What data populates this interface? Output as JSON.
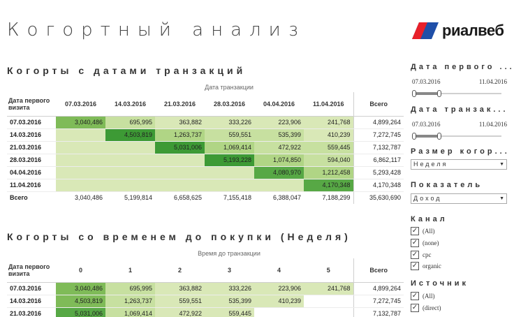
{
  "header": {
    "title": "Когортный анализ",
    "logo_text": "риалвеб"
  },
  "section1": {
    "title": "Когорты с датами транзакций",
    "axis_caption": "Дата транзакции",
    "row_header": "Дата первого визита",
    "columns": [
      "07.03.2016",
      "14.03.2016",
      "21.03.2016",
      "28.03.2016",
      "04.04.2016",
      "11.04.2016"
    ],
    "total_label": "Всего",
    "rows": [
      {
        "label": "07.03.2016",
        "cells": [
          "3,040,486",
          "695,995",
          "363,882",
          "333,226",
          "223,906",
          "241,768"
        ],
        "total": "4,899,264"
      },
      {
        "label": "14.03.2016",
        "cells": [
          "",
          "4,503,819",
          "1,263,737",
          "559,551",
          "535,399",
          "410,239"
        ],
        "total": "7,272,745"
      },
      {
        "label": "21.03.2016",
        "cells": [
          "",
          "",
          "5,031,006",
          "1,069,414",
          "472,922",
          "559,445"
        ],
        "total": "7,132,787"
      },
      {
        "label": "28.03.2016",
        "cells": [
          "",
          "",
          "",
          "5,193,228",
          "1,074,850",
          "594,040"
        ],
        "total": "6,862,117"
      },
      {
        "label": "04.04.2016",
        "cells": [
          "",
          "",
          "",
          "",
          "4,080,970",
          "1,212,458"
        ],
        "total": "5,293,428"
      },
      {
        "label": "11.04.2016",
        "cells": [
          "",
          "",
          "",
          "",
          "",
          "4,170,348"
        ],
        "total": "4,170,348"
      }
    ],
    "totals": {
      "label": "Всего",
      "cells": [
        "3,040,486",
        "5,199,814",
        "6,658,625",
        "7,155,418",
        "6,388,047",
        "7,188,299"
      ],
      "total": "35,630,690"
    }
  },
  "section2": {
    "title": "Когорты со временем до покупки (Неделя)",
    "axis_caption": "Время до транзакции",
    "row_header": "Дата первого визита",
    "columns": [
      "0",
      "1",
      "2",
      "3",
      "4",
      "5"
    ],
    "total_label": "Всего",
    "rows": [
      {
        "label": "07.03.2016",
        "cells": [
          "3,040,486",
          "695,995",
          "363,882",
          "333,226",
          "223,906",
          "241,768"
        ],
        "total": "4,899,264"
      },
      {
        "label": "14.03.2016",
        "cells": [
          "4,503,819",
          "1,263,737",
          "559,551",
          "535,399",
          "410,239",
          ""
        ],
        "total": "7,272,745"
      },
      {
        "label": "21.03.2016",
        "cells": [
          "5,031,006",
          "1,069,414",
          "472,922",
          "559,445",
          "",
          ""
        ],
        "total": "7,132,787"
      }
    ]
  },
  "filters": {
    "first_visit_date": {
      "title": "Дата первого ...",
      "from": "07.03.2016",
      "to": "11.04.2016"
    },
    "transaction_date": {
      "title": "Дата транзак...",
      "from": "07.03.2016",
      "to": "11.04.2016"
    },
    "cohort_size": {
      "title": "Размер когор...",
      "value": "Неделя"
    },
    "metric": {
      "title": "Показатель",
      "value": "Доход"
    },
    "channel": {
      "title": "Канал",
      "options": [
        "(All)",
        "(none)",
        "cpc",
        "organic"
      ]
    },
    "source": {
      "title": "Источник",
      "options": [
        "(All)",
        "(direct)"
      ]
    }
  },
  "colors": {
    "light": "#d9e8b7",
    "mid": "#b0d585",
    "dark": "#3d9a35",
    "logo_red": "#e8202a",
    "logo_blue": "#1f4fa8"
  },
  "icons": {
    "dropdown": "chevron-down-icon",
    "checkbox": "check-icon"
  }
}
